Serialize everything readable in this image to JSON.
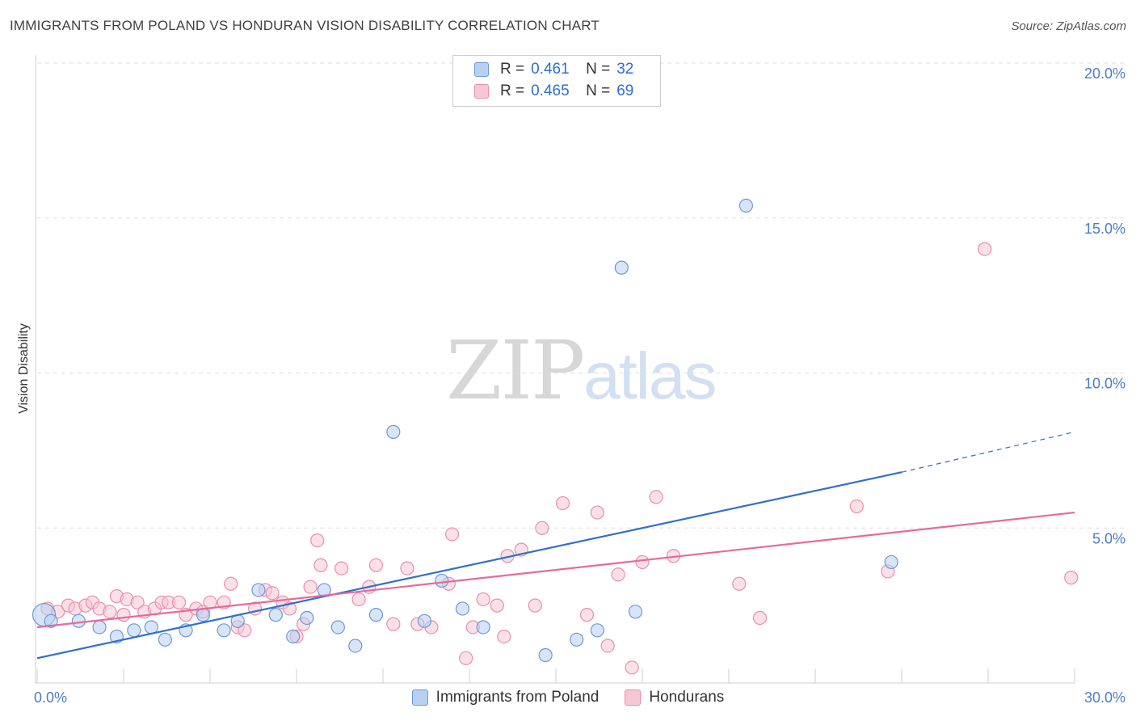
{
  "title": "IMMIGRANTS FROM POLAND VS HONDURAN VISION DISABILITY CORRELATION CHART",
  "source": "Source: ZipAtlas.com",
  "watermark": {
    "zip": "ZIP",
    "atlas": "atlas"
  },
  "legend": {
    "series1": {
      "r_label": "R =",
      "r_value": "0.461",
      "n_label": "N =",
      "n_value": "32"
    },
    "series2": {
      "r_label": "R =",
      "r_value": "0.465",
      "n_label": "N =",
      "n_value": "69"
    }
  },
  "colors": {
    "blue_fill": "#b8d0f2",
    "blue_stroke": "#6a9ad8",
    "blue_line": "#2f6fd1",
    "pink_fill": "#f7c7d5",
    "pink_stroke": "#e98fab",
    "pink_line": "#e8699a",
    "grid": "#dddddd",
    "axis_text": "#4a7dc9"
  },
  "chart_data": {
    "type": "scatter",
    "title": "IMMIGRANTS FROM POLAND VS HONDURAN VISION DISABILITY CORRELATION CHART",
    "ylabel": "Vision Disability",
    "xlabel": "",
    "xlim": [
      0,
      30
    ],
    "ylim": [
      0,
      20
    ],
    "x_tick_labels": [
      "0.0%",
      "30.0%"
    ],
    "y_ticks": [
      5,
      10,
      15,
      20
    ],
    "y_tick_labels": [
      "5.0%",
      "10.0%",
      "15.0%",
      "20.0%"
    ],
    "grid": true,
    "legend_position": "top-center",
    "series": [
      {
        "name": "Immigrants from Poland",
        "color": "blue",
        "trend": {
          "x0": 0,
          "y0": 0.8,
          "x1": 25,
          "y1": 6.8,
          "dash_to_x": 30,
          "dash_to_y": 8.1
        },
        "points": [
          [
            0.2,
            2.2
          ],
          [
            1.2,
            2.0
          ],
          [
            1.8,
            1.8
          ],
          [
            2.3,
            1.5
          ],
          [
            2.8,
            1.7
          ],
          [
            3.3,
            1.8
          ],
          [
            3.7,
            1.4
          ],
          [
            4.3,
            1.7
          ],
          [
            4.8,
            2.2
          ],
          [
            5.4,
            1.7
          ],
          [
            5.8,
            2.0
          ],
          [
            6.4,
            3.0
          ],
          [
            6.9,
            2.2
          ],
          [
            7.4,
            1.5
          ],
          [
            7.8,
            2.1
          ],
          [
            8.3,
            3.0
          ],
          [
            8.7,
            1.8
          ],
          [
            9.2,
            1.2
          ],
          [
            9.8,
            2.2
          ],
          [
            10.3,
            8.1
          ],
          [
            11.2,
            2.0
          ],
          [
            11.7,
            3.3
          ],
          [
            12.3,
            2.4
          ],
          [
            12.9,
            1.8
          ],
          [
            14.7,
            0.9
          ],
          [
            15.6,
            1.4
          ],
          [
            16.2,
            1.7
          ],
          [
            16.9,
            13.4
          ],
          [
            17.3,
            2.3
          ],
          [
            20.5,
            15.4
          ],
          [
            24.7,
            3.9
          ],
          [
            0.4,
            2.0
          ]
        ]
      },
      {
        "name": "Hondurans",
        "color": "pink",
        "trend": {
          "x0": 0,
          "y0": 1.8,
          "x1": 30,
          "y1": 5.5
        },
        "points": [
          [
            0.3,
            2.4
          ],
          [
            0.6,
            2.3
          ],
          [
            0.9,
            2.5
          ],
          [
            1.1,
            2.4
          ],
          [
            1.4,
            2.5
          ],
          [
            1.6,
            2.6
          ],
          [
            1.8,
            2.4
          ],
          [
            2.1,
            2.3
          ],
          [
            2.3,
            2.8
          ],
          [
            2.5,
            2.2
          ],
          [
            2.6,
            2.7
          ],
          [
            2.9,
            2.6
          ],
          [
            3.1,
            2.3
          ],
          [
            3.4,
            2.4
          ],
          [
            3.6,
            2.6
          ],
          [
            3.8,
            2.6
          ],
          [
            4.1,
            2.6
          ],
          [
            4.3,
            2.2
          ],
          [
            4.6,
            2.4
          ],
          [
            4.8,
            2.3
          ],
          [
            5.0,
            2.6
          ],
          [
            5.4,
            2.6
          ],
          [
            5.6,
            3.2
          ],
          [
            5.8,
            1.8
          ],
          [
            6.0,
            1.7
          ],
          [
            6.3,
            2.4
          ],
          [
            6.6,
            3.0
          ],
          [
            6.8,
            2.9
          ],
          [
            7.1,
            2.6
          ],
          [
            7.3,
            2.4
          ],
          [
            7.5,
            1.5
          ],
          [
            7.7,
            1.9
          ],
          [
            7.9,
            3.1
          ],
          [
            8.1,
            4.6
          ],
          [
            8.2,
            3.8
          ],
          [
            8.8,
            3.7
          ],
          [
            9.3,
            2.7
          ],
          [
            9.6,
            3.1
          ],
          [
            9.8,
            3.8
          ],
          [
            10.3,
            1.9
          ],
          [
            10.7,
            3.7
          ],
          [
            11.0,
            1.9
          ],
          [
            11.4,
            1.8
          ],
          [
            11.9,
            3.2
          ],
          [
            12.0,
            4.8
          ],
          [
            12.4,
            0.8
          ],
          [
            12.6,
            1.8
          ],
          [
            12.9,
            2.7
          ],
          [
            13.3,
            2.5
          ],
          [
            13.5,
            1.5
          ],
          [
            13.6,
            4.1
          ],
          [
            14.0,
            4.3
          ],
          [
            14.4,
            2.5
          ],
          [
            14.6,
            5.0
          ],
          [
            15.2,
            5.8
          ],
          [
            15.9,
            2.2
          ],
          [
            16.2,
            5.5
          ],
          [
            16.5,
            1.2
          ],
          [
            16.8,
            3.5
          ],
          [
            17.2,
            0.5
          ],
          [
            17.5,
            3.9
          ],
          [
            17.9,
            6.0
          ],
          [
            18.4,
            4.1
          ],
          [
            20.3,
            3.2
          ],
          [
            20.9,
            2.1
          ],
          [
            23.7,
            5.7
          ],
          [
            24.6,
            3.6
          ],
          [
            27.4,
            14.0
          ],
          [
            29.9,
            3.4
          ]
        ]
      }
    ]
  }
}
